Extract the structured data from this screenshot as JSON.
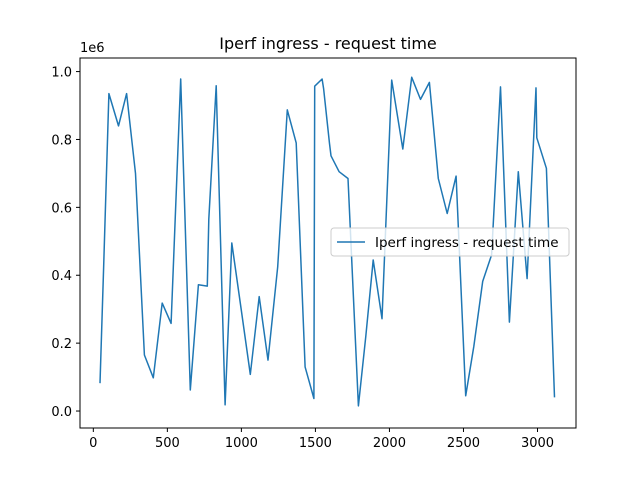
{
  "chart_data": {
    "type": "line",
    "title": "Iperf ingress - request time",
    "xlabel": "",
    "ylabel": "",
    "y_offset_label": "1e6",
    "xlim": [
      -90,
      3260
    ],
    "ylim": [
      -0.05,
      1.04
    ],
    "xticks": [
      0,
      500,
      1000,
      1500,
      2000,
      2500,
      3000
    ],
    "xtick_labels": [
      "0",
      "500",
      "1000",
      "1500",
      "2000",
      "2500",
      "3000"
    ],
    "yticks": [
      0.0,
      0.2,
      0.4,
      0.6,
      0.8,
      1.0
    ],
    "ytick_labels": [
      "0.0",
      "0.2",
      "0.4",
      "0.6",
      "0.8",
      "1.0"
    ],
    "grid": false,
    "legend_position": "center-right",
    "series": [
      {
        "name": "Iperf ingress - request time",
        "color": "#1f77b4",
        "x": [
          45,
          70,
          105,
          170,
          225,
          285,
          345,
          405,
          465,
          525,
          590,
          655,
          710,
          770,
          780,
          830,
          890,
          935,
          1000,
          1060,
          1120,
          1180,
          1245,
          1310,
          1370,
          1430,
          1490,
          1495,
          1545,
          1555,
          1595,
          1605,
          1660,
          1720,
          1790,
          1840,
          1890,
          1950,
          2015,
          2090,
          2150,
          2210,
          2270,
          2330,
          2390,
          2450,
          2515,
          2570,
          2630,
          2690,
          2750,
          2810,
          2870,
          2930,
          2990,
          2995,
          3060,
          3115
        ],
        "y": [
          0.082,
          0.43,
          0.935,
          0.84,
          0.935,
          0.7,
          0.165,
          0.098,
          0.318,
          0.258,
          0.978,
          0.062,
          0.372,
          0.368,
          0.565,
          0.958,
          0.018,
          0.495,
          0.295,
          0.108,
          0.337,
          0.15,
          0.425,
          0.887,
          0.79,
          0.13,
          0.037,
          0.957,
          0.978,
          0.95,
          0.788,
          0.752,
          0.705,
          0.685,
          0.015,
          0.22,
          0.445,
          0.272,
          0.975,
          0.772,
          0.983,
          0.918,
          0.968,
          0.685,
          0.582,
          0.692,
          0.045,
          0.19,
          0.382,
          0.46,
          0.955,
          0.262,
          0.705,
          0.39,
          0.952,
          0.805,
          0.715,
          0.04
        ]
      }
    ]
  }
}
